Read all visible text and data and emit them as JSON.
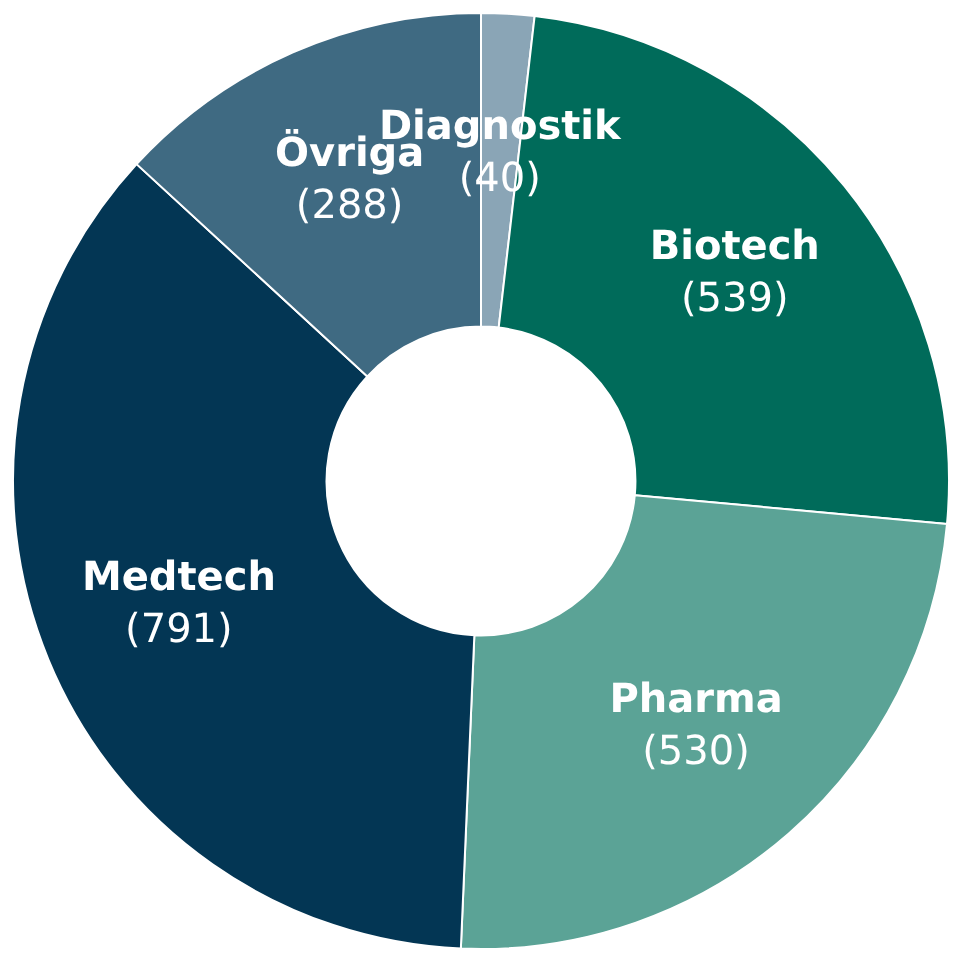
{
  "chart_data": {
    "type": "donut",
    "categories": [
      "Diagnostik",
      "Biotech",
      "Pharma",
      "Medtech",
      "Övriga"
    ],
    "values": [
      40,
      539,
      530,
      791,
      288
    ],
    "value_labels": [
      "(40)",
      "(539)",
      "(530)",
      "(791)",
      "(288)"
    ],
    "colors": [
      "#8aa5b6",
      "#006b5a",
      "#5ba396",
      "#033654",
      "#3f6a82"
    ],
    "legend": false
  }
}
